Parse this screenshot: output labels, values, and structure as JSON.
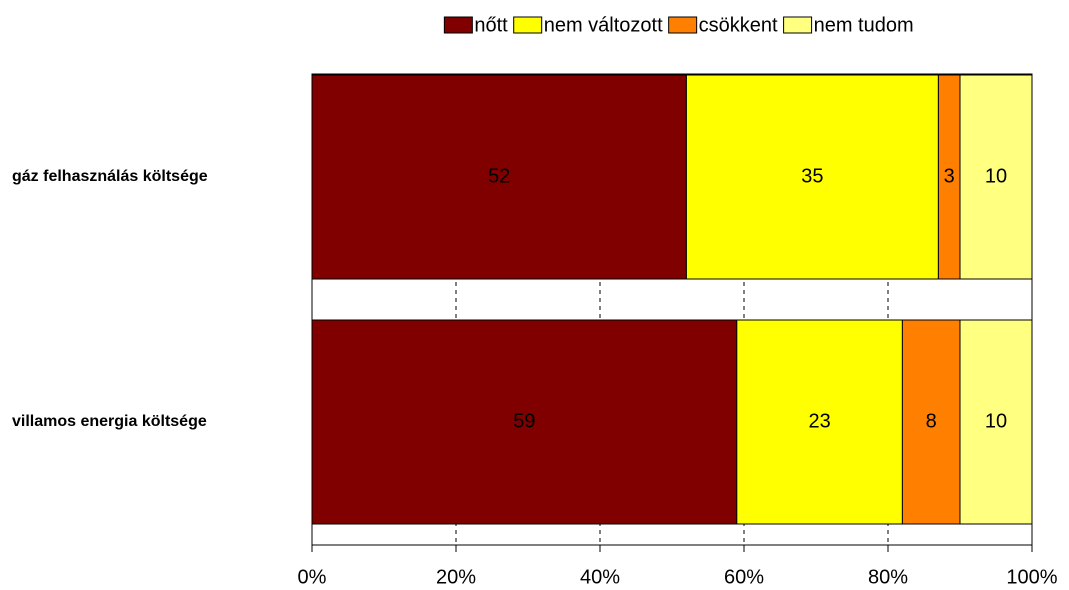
{
  "chart_data": {
    "type": "stacked_barh",
    "categories": [
      "gáz felhasználás költsége",
      "villamos energia költsége"
    ],
    "series": [
      {
        "name": "nőtt",
        "color": "#800000",
        "values": [
          52,
          59
        ]
      },
      {
        "name": "nem változott",
        "color": "#ffff00",
        "values": [
          35,
          23
        ]
      },
      {
        "name": "csökkent",
        "color": "#ff8000",
        "values": [
          3,
          8
        ]
      },
      {
        "name": "nem tudom",
        "color": "#ffff80",
        "values": [
          10,
          10
        ]
      }
    ],
    "xlim": [
      0,
      100
    ],
    "xticks": [
      {
        "value": 0,
        "label": "0%"
      },
      {
        "value": 20,
        "label": "20%"
      },
      {
        "value": 40,
        "label": "40%"
      },
      {
        "value": 60,
        "label": "60%"
      },
      {
        "value": 80,
        "label": "80%"
      },
      {
        "value": 100,
        "label": "100%"
      }
    ],
    "grid": true,
    "legend": "top"
  }
}
